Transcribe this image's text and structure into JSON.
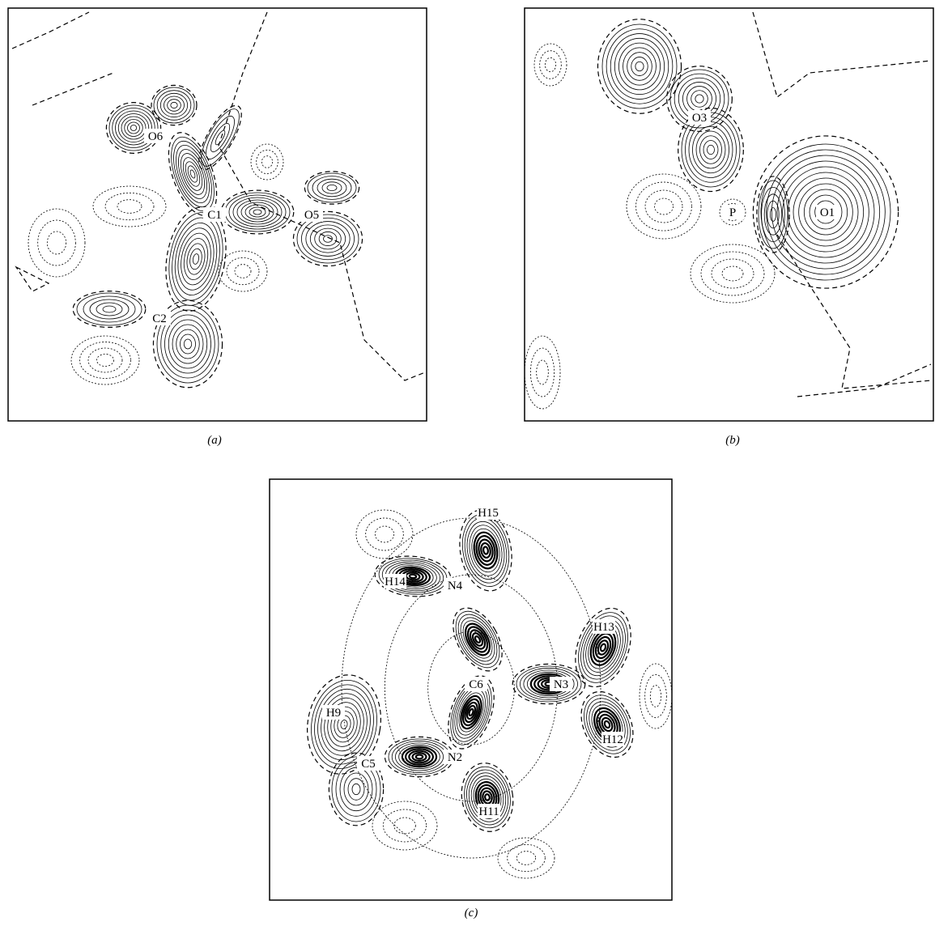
{
  "panels": [
    {
      "label": "(a)",
      "atoms": [
        "O6",
        "C1",
        "O5",
        "C2"
      ]
    },
    {
      "label": "(b)",
      "atoms": [
        "O3",
        "P",
        "O1"
      ]
    },
    {
      "label": "(c)",
      "atoms": [
        "H15",
        "H14",
        "N4",
        "H13",
        "C6",
        "N3",
        "H9",
        "N2",
        "C5",
        "H12",
        "H11"
      ]
    }
  ]
}
